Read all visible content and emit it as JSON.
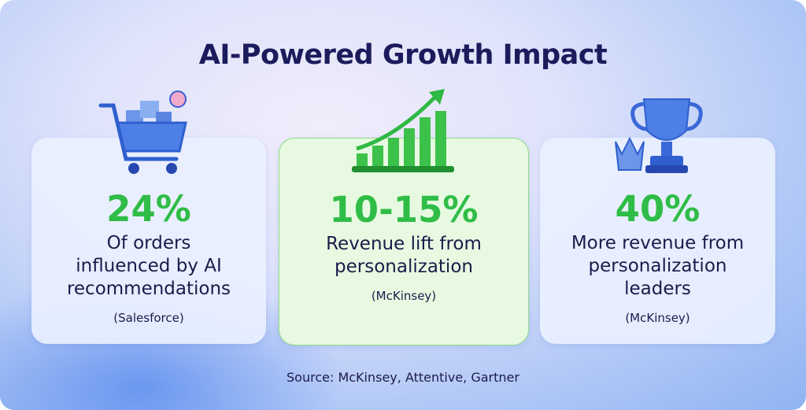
{
  "title": "AI-Powered Growth Impact",
  "cards": [
    {
      "stat": "24%",
      "lines": [
        "Of orders",
        "influenced by AI",
        "recommendations"
      ],
      "source": "(Salesforce)"
    },
    {
      "stat": "10-15%",
      "lines": [
        "Revenue lift from",
        "personalization"
      ],
      "source": "(McKinsey)"
    },
    {
      "stat": "40%",
      "lines": [
        "More revenue from",
        "personalization",
        "leaders"
      ],
      "source": "(McKinsey)"
    }
  ],
  "footer": "Source: McKinsey, Attentive, Gartner"
}
